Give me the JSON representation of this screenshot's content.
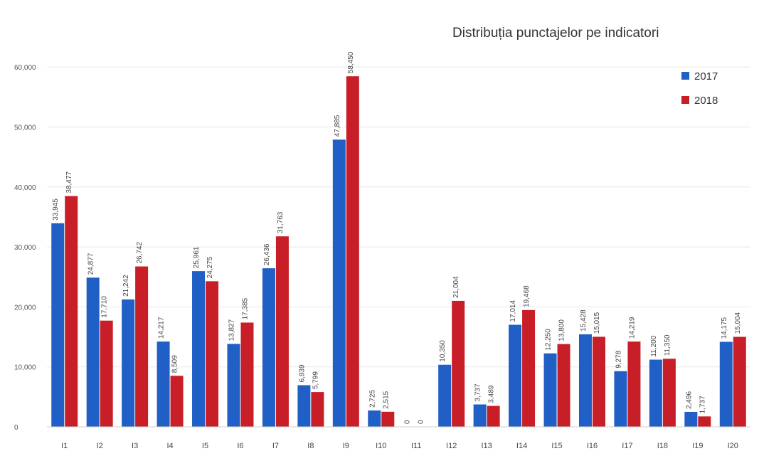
{
  "chart_data": {
    "type": "bar",
    "title": "Distribuția punctajelor pe indicatori",
    "xlabel": "",
    "ylabel": "",
    "ylim": [
      0,
      65000
    ],
    "yticks": [
      0,
      10000,
      20000,
      30000,
      40000,
      50000,
      60000
    ],
    "ytick_labels": [
      "0",
      "10,000",
      "20,000",
      "30,000",
      "40,000",
      "50,000",
      "60,000"
    ],
    "grid": false,
    "legend_position": "top-right",
    "categories": [
      "I1",
      "I2",
      "I3",
      "I4",
      "I5",
      "I6",
      "I7",
      "I8",
      "I9",
      "I10",
      "I11",
      "I12",
      "I13",
      "I14",
      "I15",
      "I16",
      "I17",
      "I18",
      "I19",
      "I20"
    ],
    "series": [
      {
        "name": "2017",
        "color": "#1f5fc6",
        "values": [
          33945,
          24877,
          21242,
          14217,
          25961,
          13827,
          26436,
          6939,
          47885,
          2725,
          0,
          10350,
          3737,
          17014,
          12250,
          15428,
          9278,
          11200,
          2496,
          14175
        ],
        "labels": [
          "33,945",
          "24,877",
          "21,242",
          "14,217",
          "25,961",
          "13,827",
          "26,436",
          "6,939",
          "47,885",
          "2,725",
          "0",
          "10,350",
          "3,737",
          "17,014",
          "12,250",
          "15,428",
          "9,278",
          "11,200",
          "2,496",
          "14,175"
        ]
      },
      {
        "name": "2018",
        "color": "#c81e28",
        "values": [
          38477,
          17710,
          26742,
          8509,
          24275,
          17385,
          31763,
          5799,
          58450,
          2515,
          0,
          21004,
          3489,
          19468,
          13800,
          15015,
          14219,
          11350,
          1737,
          15004
        ],
        "labels": [
          "38,477",
          "17,710",
          "26,742",
          "8,509",
          "24,275",
          "17,385",
          "31,763",
          "5,799",
          "58,450",
          "2,515",
          "0",
          "21,004",
          "3,489",
          "19,468",
          "13,800",
          "15,015",
          "14,219",
          "11,350",
          "1,737",
          "15,004"
        ]
      }
    ]
  }
}
